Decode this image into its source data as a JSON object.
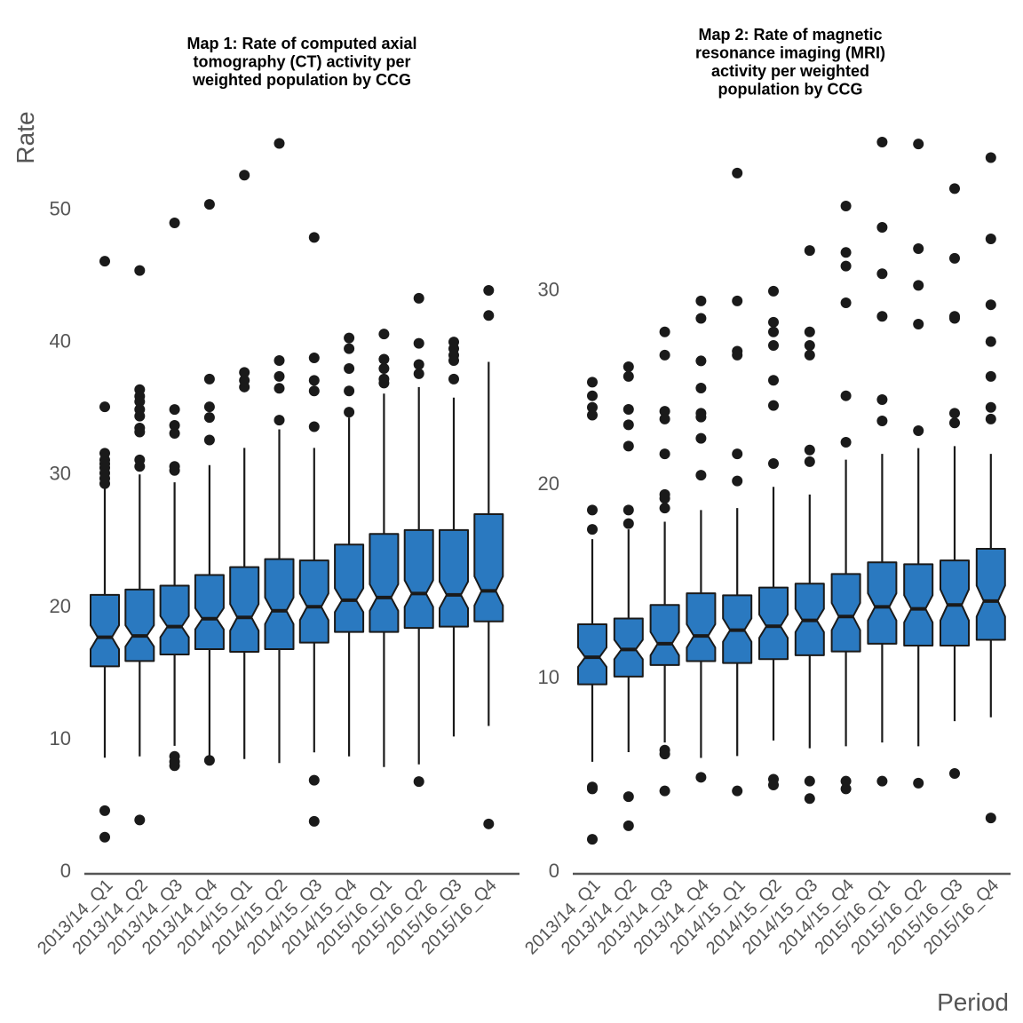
{
  "ylabel": "Rate",
  "xlabel": "Period",
  "colors": {
    "box_fill": "#2a79c0",
    "stroke": "#1a1a1a",
    "axis": "#555555",
    "text": "#555555"
  },
  "chart_data": [
    {
      "type": "boxplot",
      "title_lines": [
        "Map 1: Rate of computed axial",
        "tomography (CT) activity per",
        "weighted population by CCG"
      ],
      "categories": [
        "2013/14_Q1",
        "2013/14_Q2",
        "2013/14_Q3",
        "2013/14_Q4",
        "2014/15_Q1",
        "2014/15_Q2",
        "2014/15_Q3",
        "2014/15_Q4",
        "2015/16_Q1",
        "2015/16_Q2",
        "2015/16_Q3",
        "2015/16_Q4"
      ],
      "yticks": [
        0,
        10,
        20,
        30,
        40,
        50
      ],
      "ylim": [
        0,
        56
      ],
      "notched": true,
      "boxes": [
        {
          "low": 8.5,
          "q1": 15.4,
          "median": 17.6,
          "q3": 20.8,
          "high": 29.0,
          "notch": [
            16.7,
            18.5
          ],
          "outliers": [
            46.0,
            35.0,
            31.5,
            31.0,
            30.7,
            30.4,
            30.0,
            29.6,
            29.2,
            4.5,
            2.5
          ]
        },
        {
          "low": 8.6,
          "q1": 15.8,
          "median": 17.7,
          "q3": 21.2,
          "high": 29.9,
          "notch": [
            16.9,
            18.5
          ],
          "outliers": [
            45.3,
            36.3,
            35.8,
            35.4,
            34.8,
            34.3,
            33.4,
            33.1,
            31.0,
            30.5,
            3.8
          ]
        },
        {
          "low": 9.4,
          "q1": 16.3,
          "median": 18.4,
          "q3": 21.5,
          "high": 29.3,
          "notch": [
            17.6,
            19.2
          ],
          "outliers": [
            48.9,
            34.8,
            33.6,
            33.0,
            30.5,
            30.2,
            8.6,
            8.2,
            7.9
          ]
        },
        {
          "low": 8.3,
          "q1": 16.7,
          "median": 19.0,
          "q3": 22.3,
          "high": 30.6,
          "notch": [
            18.2,
            19.8
          ],
          "outliers": [
            50.3,
            37.1,
            35.0,
            34.2,
            32.5,
            8.3
          ]
        },
        {
          "low": 8.4,
          "q1": 16.5,
          "median": 19.1,
          "q3": 22.9,
          "high": 31.9,
          "notch": [
            18.1,
            20.1
          ],
          "outliers": [
            52.5,
            37.6,
            37.0,
            36.5
          ]
        },
        {
          "low": 8.1,
          "q1": 16.7,
          "median": 19.6,
          "q3": 23.5,
          "high": 33.3,
          "notch": [
            18.6,
            20.6
          ],
          "outliers": [
            54.9,
            38.5,
            37.3,
            36.4,
            34.0
          ]
        },
        {
          "low": 8.9,
          "q1": 17.2,
          "median": 19.9,
          "q3": 23.4,
          "high": 31.9,
          "notch": [
            18.9,
            20.9
          ],
          "outliers": [
            47.8,
            38.7,
            37.0,
            36.2,
            33.5,
            6.8,
            3.7
          ]
        },
        {
          "low": 8.6,
          "q1": 18.0,
          "median": 20.4,
          "q3": 24.6,
          "high": 34.2,
          "notch": [
            19.5,
            21.3
          ],
          "outliers": [
            40.2,
            39.4,
            37.9,
            36.2,
            34.6
          ]
        },
        {
          "low": 7.8,
          "q1": 18.0,
          "median": 20.6,
          "q3": 25.4,
          "high": 36.0,
          "notch": [
            19.6,
            21.6
          ],
          "outliers": [
            40.5,
            38.6,
            37.9,
            37.1,
            36.8
          ]
        },
        {
          "low": 8.0,
          "q1": 18.3,
          "median": 20.9,
          "q3": 25.7,
          "high": 36.5,
          "notch": [
            19.9,
            21.9
          ],
          "outliers": [
            43.2,
            39.8,
            38.2,
            37.5,
            6.7
          ]
        },
        {
          "low": 10.1,
          "q1": 18.4,
          "median": 20.8,
          "q3": 25.7,
          "high": 35.7,
          "notch": [
            19.8,
            21.8
          ],
          "outliers": [
            39.9,
            39.4,
            38.9,
            38.5,
            37.1
          ]
        },
        {
          "low": 10.9,
          "q1": 18.8,
          "median": 21.1,
          "q3": 26.9,
          "high": 38.4,
          "notch": [
            20.0,
            22.2
          ],
          "outliers": [
            43.8,
            41.9,
            3.5
          ]
        }
      ]
    },
    {
      "type": "boxplot",
      "title_lines": [
        "Map 2: Rate of magnetic",
        "resonance imaging (MRI)",
        "activity per weighted",
        "population by CCG"
      ],
      "categories": [
        "2013/14_Q1",
        "2013/14_Q2",
        "2013/14_Q3",
        "2013/14_Q4",
        "2014/15_Q1",
        "2014/15_Q2",
        "2014/15_Q3",
        "2014/15_Q4",
        "2015/16_Q1",
        "2015/16_Q2",
        "2015/16_Q3",
        "2015/16_Q4"
      ],
      "yticks": [
        0,
        10,
        20,
        30
      ],
      "ylim": [
        0,
        38
      ],
      "notched": true,
      "boxes": [
        {
          "low": 5.6,
          "q1": 9.6,
          "median": 11.0,
          "q3": 12.7,
          "high": 17.1,
          "notch": [
            10.5,
            11.5
          ],
          "outliers": [
            25.2,
            24.5,
            23.9,
            23.5,
            18.6,
            17.6,
            4.3,
            4.2,
            1.6
          ]
        },
        {
          "low": 6.1,
          "q1": 10.0,
          "median": 11.4,
          "q3": 13.0,
          "high": 17.6,
          "notch": [
            10.9,
            11.9
          ],
          "outliers": [
            26.0,
            25.5,
            23.8,
            23.0,
            21.9,
            18.6,
            17.9,
            3.8,
            2.3
          ]
        },
        {
          "low": 6.6,
          "q1": 10.6,
          "median": 11.7,
          "q3": 13.7,
          "high": 18.0,
          "notch": [
            11.1,
            12.3
          ],
          "outliers": [
            27.8,
            26.6,
            23.7,
            23.3,
            21.5,
            19.4,
            19.2,
            18.7,
            6.2,
            6.0,
            4.1
          ]
        },
        {
          "low": 5.8,
          "q1": 10.8,
          "median": 12.1,
          "q3": 14.3,
          "high": 18.6,
          "notch": [
            11.5,
            12.7
          ],
          "outliers": [
            29.4,
            28.5,
            26.3,
            24.9,
            23.6,
            23.4,
            22.3,
            20.4,
            4.8
          ]
        },
        {
          "low": 5.9,
          "q1": 10.7,
          "median": 12.4,
          "q3": 14.2,
          "high": 18.7,
          "notch": [
            11.8,
            13.0
          ],
          "outliers": [
            36.0,
            29.4,
            26.8,
            26.6,
            21.5,
            20.1,
            4.1
          ]
        },
        {
          "low": 6.7,
          "q1": 10.9,
          "median": 12.6,
          "q3": 14.6,
          "high": 19.8,
          "notch": [
            12.0,
            13.2
          ],
          "outliers": [
            29.9,
            28.3,
            27.8,
            27.1,
            25.3,
            24.0,
            21.0,
            4.7,
            4.4
          ]
        },
        {
          "low": 6.3,
          "q1": 11.1,
          "median": 12.9,
          "q3": 14.8,
          "high": 19.4,
          "notch": [
            12.3,
            13.5
          ],
          "outliers": [
            32.0,
            27.8,
            27.1,
            26.6,
            21.7,
            21.1,
            4.6,
            3.7
          ]
        },
        {
          "low": 6.4,
          "q1": 11.3,
          "median": 13.1,
          "q3": 15.3,
          "high": 21.2,
          "notch": [
            12.4,
            13.8
          ],
          "outliers": [
            34.3,
            31.9,
            31.2,
            29.3,
            24.5,
            22.1,
            4.6,
            4.2
          ]
        },
        {
          "low": 6.6,
          "q1": 11.7,
          "median": 13.6,
          "q3": 15.9,
          "high": 21.5,
          "notch": [
            12.9,
            14.3
          ],
          "outliers": [
            37.6,
            33.2,
            30.8,
            28.6,
            24.3,
            23.2,
            4.6
          ]
        },
        {
          "low": 6.4,
          "q1": 11.6,
          "median": 13.5,
          "q3": 15.8,
          "high": 21.8,
          "notch": [
            12.8,
            14.2
          ],
          "outliers": [
            37.5,
            32.1,
            30.2,
            28.2,
            22.7,
            4.5
          ]
        },
        {
          "low": 7.7,
          "q1": 11.6,
          "median": 13.7,
          "q3": 16.0,
          "high": 21.9,
          "notch": [
            12.9,
            14.5
          ],
          "outliers": [
            35.2,
            31.6,
            28.6,
            28.5,
            23.6,
            23.1,
            5.0
          ]
        },
        {
          "low": 7.9,
          "q1": 11.9,
          "median": 13.9,
          "q3": 16.6,
          "high": 21.5,
          "notch": [
            13.1,
            14.7
          ],
          "outliers": [
            36.8,
            32.6,
            29.2,
            27.3,
            25.5,
            23.9,
            23.3,
            2.7
          ]
        }
      ]
    }
  ]
}
